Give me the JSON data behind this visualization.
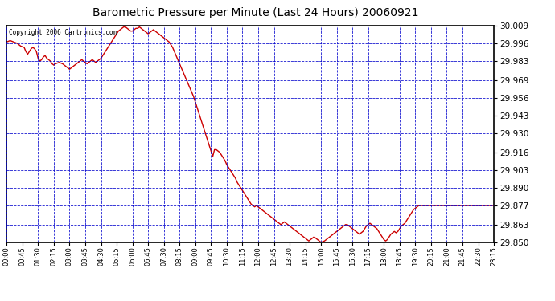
{
  "title": "Barometric Pressure per Minute (Last 24 Hours) 20060921",
  "copyright_text": "Copyright 2006 Cartronics.com",
  "background_color": "#ffffff",
  "plot_bg_color": "#ffffff",
  "line_color": "#cc0000",
  "grid_color": "#0000cc",
  "y_min": 29.85,
  "y_max": 30.009,
  "y_ticks": [
    29.85,
    29.863,
    29.877,
    29.89,
    29.903,
    29.916,
    29.93,
    29.943,
    29.956,
    29.969,
    29.983,
    29.996,
    30.009
  ],
  "x_labels": [
    "00:00",
    "00:45",
    "01:30",
    "02:15",
    "03:00",
    "03:45",
    "04:30",
    "05:15",
    "06:00",
    "06:45",
    "07:30",
    "08:15",
    "09:00",
    "09:45",
    "10:30",
    "11:15",
    "12:00",
    "12:45",
    "13:30",
    "14:15",
    "15:00",
    "15:45",
    "16:30",
    "17:15",
    "18:00",
    "18:45",
    "19:30",
    "20:15",
    "21:00",
    "21:45",
    "22:30",
    "23:15"
  ],
  "x_tick_positions": [
    0,
    45,
    90,
    135,
    180,
    225,
    270,
    315,
    360,
    405,
    450,
    495,
    540,
    585,
    630,
    675,
    720,
    765,
    810,
    855,
    900,
    945,
    990,
    1035,
    1080,
    1125,
    1170,
    1215,
    1260,
    1305,
    1350,
    1395
  ],
  "pressure_data": [
    [
      0,
      29.997
    ],
    [
      10,
      29.998
    ],
    [
      20,
      29.997
    ],
    [
      30,
      29.996
    ],
    [
      40,
      29.994
    ],
    [
      50,
      29.993
    ],
    [
      55,
      29.99
    ],
    [
      60,
      29.988
    ],
    [
      65,
      29.99
    ],
    [
      70,
      29.992
    ],
    [
      75,
      29.993
    ],
    [
      80,
      29.992
    ],
    [
      85,
      29.99
    ],
    [
      90,
      29.985
    ],
    [
      95,
      29.983
    ],
    [
      100,
      29.984
    ],
    [
      105,
      29.986
    ],
    [
      110,
      29.987
    ],
    [
      115,
      29.985
    ],
    [
      120,
      29.984
    ],
    [
      125,
      29.983
    ],
    [
      130,
      29.981
    ],
    [
      135,
      29.98
    ],
    [
      140,
      29.981
    ],
    [
      150,
      29.982
    ],
    [
      160,
      29.981
    ],
    [
      165,
      29.98
    ],
    [
      170,
      29.979
    ],
    [
      175,
      29.978
    ],
    [
      180,
      29.977
    ],
    [
      185,
      29.978
    ],
    [
      190,
      29.979
    ],
    [
      195,
      29.98
    ],
    [
      200,
      29.981
    ],
    [
      205,
      29.982
    ],
    [
      210,
      29.983
    ],
    [
      215,
      29.984
    ],
    [
      220,
      29.983
    ],
    [
      225,
      29.982
    ],
    [
      230,
      29.981
    ],
    [
      235,
      29.982
    ],
    [
      240,
      29.983
    ],
    [
      245,
      29.984
    ],
    [
      250,
      29.983
    ],
    [
      255,
      29.982
    ],
    [
      260,
      29.983
    ],
    [
      265,
      29.984
    ],
    [
      270,
      29.985
    ],
    [
      275,
      29.987
    ],
    [
      280,
      29.989
    ],
    [
      285,
      29.991
    ],
    [
      290,
      29.993
    ],
    [
      295,
      29.995
    ],
    [
      300,
      29.997
    ],
    [
      305,
      29.999
    ],
    [
      310,
      30.001
    ],
    [
      315,
      30.003
    ],
    [
      320,
      30.005
    ],
    [
      325,
      30.006
    ],
    [
      330,
      30.007
    ],
    [
      335,
      30.008
    ],
    [
      340,
      30.008
    ],
    [
      345,
      30.007
    ],
    [
      350,
      30.006
    ],
    [
      355,
      30.005
    ],
    [
      360,
      30.005
    ],
    [
      365,
      30.006
    ],
    [
      370,
      30.007
    ],
    [
      375,
      30.007
    ],
    [
      380,
      30.008
    ],
    [
      385,
      30.007
    ],
    [
      390,
      30.006
    ],
    [
      395,
      30.005
    ],
    [
      400,
      30.004
    ],
    [
      405,
      30.003
    ],
    [
      410,
      30.004
    ],
    [
      415,
      30.005
    ],
    [
      420,
      30.006
    ],
    [
      425,
      30.005
    ],
    [
      430,
      30.004
    ],
    [
      435,
      30.003
    ],
    [
      440,
      30.002
    ],
    [
      445,
      30.001
    ],
    [
      450,
      30.0
    ],
    [
      455,
      29.999
    ],
    [
      460,
      29.998
    ],
    [
      465,
      29.997
    ],
    [
      470,
      29.995
    ],
    [
      475,
      29.993
    ],
    [
      480,
      29.99
    ],
    [
      485,
      29.987
    ],
    [
      490,
      29.984
    ],
    [
      495,
      29.981
    ],
    [
      500,
      29.978
    ],
    [
      505,
      29.975
    ],
    [
      510,
      29.972
    ],
    [
      515,
      29.969
    ],
    [
      520,
      29.966
    ],
    [
      525,
      29.963
    ],
    [
      530,
      29.96
    ],
    [
      535,
      29.957
    ],
    [
      540,
      29.953
    ],
    [
      545,
      29.949
    ],
    [
      550,
      29.945
    ],
    [
      555,
      29.941
    ],
    [
      560,
      29.937
    ],
    [
      565,
      29.933
    ],
    [
      570,
      29.929
    ],
    [
      575,
      29.925
    ],
    [
      580,
      29.921
    ],
    [
      585,
      29.917
    ],
    [
      590,
      29.913
    ],
    [
      595,
      29.918
    ],
    [
      600,
      29.918
    ],
    [
      605,
      29.917
    ],
    [
      610,
      29.916
    ],
    [
      615,
      29.914
    ],
    [
      620,
      29.912
    ],
    [
      625,
      29.91
    ],
    [
      630,
      29.907
    ],
    [
      635,
      29.905
    ],
    [
      640,
      29.903
    ],
    [
      645,
      29.901
    ],
    [
      650,
      29.899
    ],
    [
      655,
      29.897
    ],
    [
      660,
      29.894
    ],
    [
      665,
      29.892
    ],
    [
      670,
      29.89
    ],
    [
      675,
      29.888
    ],
    [
      680,
      29.886
    ],
    [
      685,
      29.884
    ],
    [
      690,
      29.882
    ],
    [
      695,
      29.88
    ],
    [
      700,
      29.878
    ],
    [
      705,
      29.877
    ],
    [
      710,
      29.876
    ],
    [
      715,
      29.877
    ],
    [
      720,
      29.876
    ],
    [
      725,
      29.875
    ],
    [
      730,
      29.874
    ],
    [
      735,
      29.873
    ],
    [
      740,
      29.872
    ],
    [
      745,
      29.871
    ],
    [
      750,
      29.87
    ],
    [
      755,
      29.869
    ],
    [
      760,
      29.868
    ],
    [
      765,
      29.867
    ],
    [
      770,
      29.866
    ],
    [
      775,
      29.865
    ],
    [
      780,
      29.864
    ],
    [
      785,
      29.863
    ],
    [
      790,
      29.864
    ],
    [
      795,
      29.865
    ],
    [
      800,
      29.864
    ],
    [
      805,
      29.863
    ],
    [
      810,
      29.862
    ],
    [
      815,
      29.861
    ],
    [
      820,
      29.86
    ],
    [
      825,
      29.859
    ],
    [
      830,
      29.858
    ],
    [
      835,
      29.857
    ],
    [
      840,
      29.856
    ],
    [
      845,
      29.855
    ],
    [
      850,
      29.854
    ],
    [
      855,
      29.853
    ],
    [
      860,
      29.852
    ],
    [
      865,
      29.851
    ],
    [
      870,
      29.852
    ],
    [
      875,
      29.853
    ],
    [
      880,
      29.854
    ],
    [
      885,
      29.853
    ],
    [
      890,
      29.852
    ],
    [
      895,
      29.851
    ],
    [
      900,
      29.85
    ],
    [
      910,
      29.851
    ],
    [
      920,
      29.853
    ],
    [
      930,
      29.855
    ],
    [
      940,
      29.857
    ],
    [
      950,
      29.859
    ],
    [
      960,
      29.861
    ],
    [
      970,
      29.863
    ],
    [
      975,
      29.863
    ],
    [
      980,
      29.862
    ],
    [
      985,
      29.861
    ],
    [
      990,
      29.86
    ],
    [
      995,
      29.859
    ],
    [
      1000,
      29.858
    ],
    [
      1005,
      29.857
    ],
    [
      1010,
      29.856
    ],
    [
      1015,
      29.857
    ],
    [
      1020,
      29.858
    ],
    [
      1025,
      29.86
    ],
    [
      1030,
      29.862
    ],
    [
      1035,
      29.863
    ],
    [
      1040,
      29.864
    ],
    [
      1045,
      29.863
    ],
    [
      1050,
      29.862
    ],
    [
      1055,
      29.861
    ],
    [
      1060,
      29.86
    ],
    [
      1065,
      29.858
    ],
    [
      1070,
      29.856
    ],
    [
      1075,
      29.854
    ],
    [
      1080,
      29.852
    ],
    [
      1085,
      29.851
    ],
    [
      1090,
      29.852
    ],
    [
      1095,
      29.854
    ],
    [
      1100,
      29.856
    ],
    [
      1105,
      29.857
    ],
    [
      1110,
      29.858
    ],
    [
      1115,
      29.857
    ],
    [
      1120,
      29.858
    ],
    [
      1125,
      29.86
    ],
    [
      1130,
      29.862
    ],
    [
      1135,
      29.863
    ],
    [
      1140,
      29.864
    ],
    [
      1145,
      29.866
    ],
    [
      1150,
      29.868
    ],
    [
      1155,
      29.87
    ],
    [
      1160,
      29.872
    ],
    [
      1165,
      29.874
    ],
    [
      1170,
      29.875
    ],
    [
      1175,
      29.876
    ],
    [
      1180,
      29.877
    ],
    [
      1185,
      29.877
    ],
    [
      1190,
      29.877
    ],
    [
      1200,
      29.877
    ],
    [
      1395,
      29.877
    ]
  ]
}
